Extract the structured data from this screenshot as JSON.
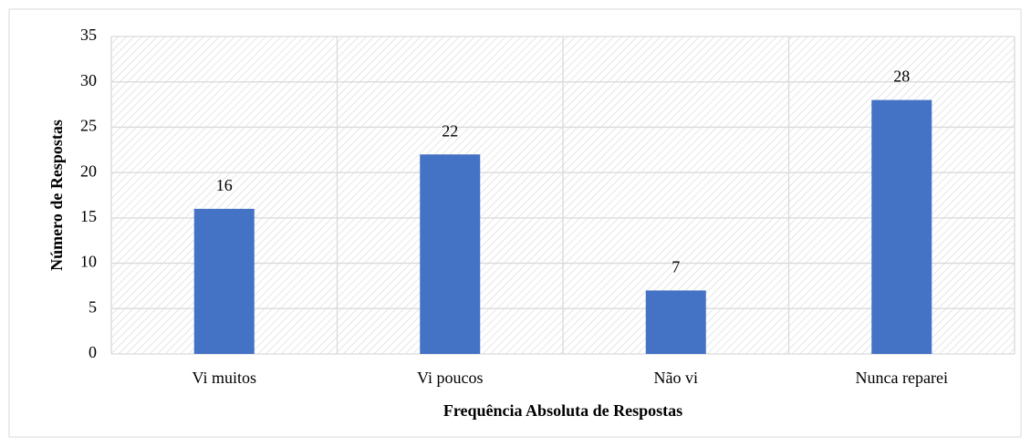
{
  "chart_data": {
    "type": "bar",
    "x_label": "Frequência Absoluta de Respostas",
    "y_label": "Número de Respostas",
    "categories": [
      "Vi muitos",
      "Vi poucos",
      "Não vi",
      "Nunca reparei"
    ],
    "values": [
      16,
      22,
      7,
      28
    ],
    "color": "#4472c4",
    "ylim": [
      0,
      35
    ],
    "yticks": [
      0,
      5,
      10,
      15,
      20,
      25,
      30,
      35
    ],
    "grid": true
  }
}
